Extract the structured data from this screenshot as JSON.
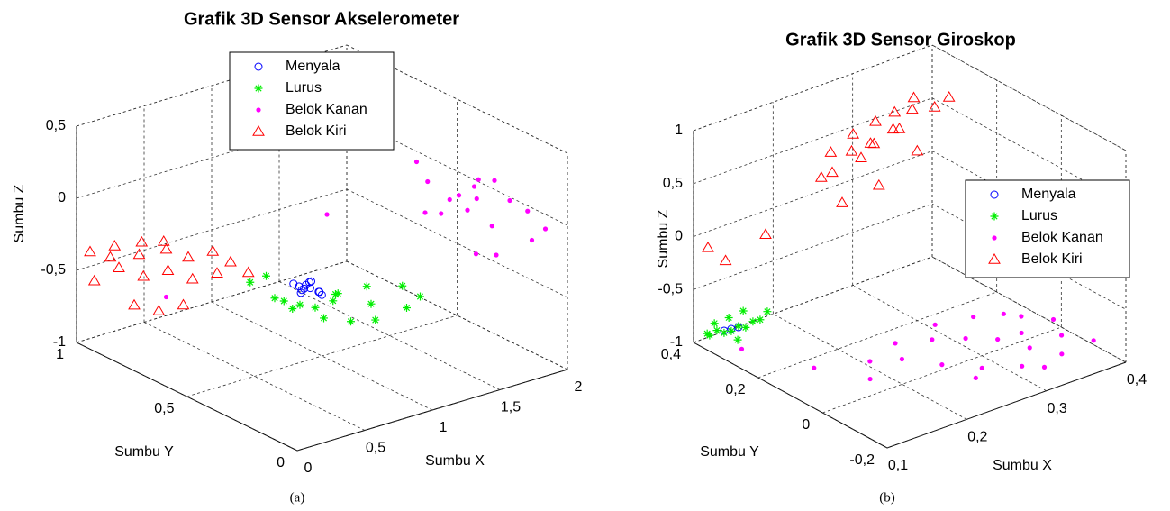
{
  "chart_data": [
    {
      "type": "scatter3d",
      "title": "Grafik 3D Sensor Akselerometer",
      "caption": "(a)",
      "xlabel": "Sumbu X",
      "ylabel": "Sumbu Y",
      "zlabel": "Sumbu Z",
      "xlim": [
        0,
        2
      ],
      "ylim": [
        0,
        1
      ],
      "zlim": [
        -1,
        0.5
      ],
      "xticks": [
        0,
        {
          "value": 0.5,
          "label": "0,5"
        },
        1,
        {
          "value": 1.5,
          "label": "1,5"
        },
        2
      ],
      "yticks": [
        0,
        {
          "value": 0.5,
          "label": "0,5"
        },
        1
      ],
      "zticks": [
        -1,
        {
          "value": -0.5,
          "label": "-0,5"
        },
        0,
        {
          "value": 0.5,
          "label": "0,5"
        }
      ],
      "grid": true,
      "legend": "north",
      "series": [
        {
          "name": "Menyala",
          "color": "#0000ff",
          "marker": "o",
          "x": [
            0.85,
            0.88,
            0.9,
            0.92,
            0.87,
            0.95,
            0.9,
            0.83,
            0.93,
            0.89,
            0.86,
            0.91
          ],
          "y": [
            0.5,
            0.48,
            0.52,
            0.5,
            0.55,
            0.47,
            0.45,
            0.5,
            0.53,
            0.49,
            0.51,
            0.46
          ],
          "z": [
            -0.5,
            -0.48,
            -0.52,
            -0.46,
            -0.5,
            -0.54,
            -0.49,
            -0.47,
            -0.51,
            -0.45,
            -0.53,
            -0.5
          ]
        },
        {
          "name": "Lurus",
          "color": "#00ee00",
          "marker": "*",
          "x": [
            0.55,
            0.65,
            0.7,
            0.8,
            0.85,
            0.95,
            1.0,
            1.05,
            1.1,
            1.15,
            1.2,
            1.25,
            1.3,
            1.35,
            1.4,
            0.75,
            1.0,
            1.2
          ],
          "y": [
            0.55,
            0.5,
            0.45,
            0.55,
            0.4,
            0.5,
            0.45,
            0.4,
            0.5,
            0.35,
            0.4,
            0.45,
            0.3,
            0.35,
            0.3,
            0.6,
            0.6,
            0.55
          ],
          "z": [
            -0.4,
            -0.5,
            -0.55,
            -0.6,
            -0.62,
            -0.65,
            -0.58,
            -0.7,
            -0.6,
            -0.68,
            -0.62,
            -0.55,
            -0.6,
            -0.5,
            -0.55,
            -0.45,
            -0.72,
            -0.66
          ]
        },
        {
          "name": "Belok Kanan",
          "color": "#ff00ff",
          "marker": ".",
          "x": [
            1.6,
            1.7,
            1.75,
            1.8,
            1.85,
            1.9,
            1.95,
            2.0,
            1.7,
            1.8,
            1.9,
            1.65,
            1.75,
            1.85,
            1.95,
            1.8,
            1.9,
            1.2,
            0.5,
            1.7
          ],
          "y": [
            0.4,
            0.35,
            0.3,
            0.3,
            0.25,
            0.2,
            0.15,
            0.1,
            0.5,
            0.45,
            0.35,
            0.2,
            0.25,
            0.4,
            0.3,
            0.2,
            0.1,
            0.6,
            0.9,
            0.45
          ],
          "z": [
            -0.1,
            0,
            -0.05,
            0.1,
            -0.15,
            0.05,
            0,
            -0.1,
            0.15,
            -0.2,
            -0.05,
            -0.25,
            0.2,
            -0.05,
            0.1,
            -0.3,
            -0.15,
            -0.15,
            -0.75,
            0.05
          ]
        },
        {
          "name": "Belok Kiri",
          "color": "#ff0000",
          "marker": "^",
          "x": [
            0.05,
            0.1,
            0.15,
            0.2,
            0.25,
            0.3,
            0.35,
            0.4,
            0.45,
            0.5,
            0.55,
            0.6,
            0.65,
            0.7,
            0.2,
            0.3,
            0.4,
            0.1,
            0.5,
            0.25
          ],
          "y": [
            0.95,
            1,
            0.9,
            0.95,
            0.85,
            0.9,
            0.8,
            0.85,
            0.75,
            0.8,
            0.7,
            0.75,
            0.7,
            0.65,
            0.75,
            0.7,
            0.95,
            0.8,
            0.9,
            1
          ],
          "z": [
            -0.55,
            -0.4,
            -0.45,
            -0.35,
            -0.5,
            -0.4,
            -0.45,
            -0.3,
            -0.5,
            -0.4,
            -0.45,
            -0.35,
            -0.4,
            -0.45,
            -0.65,
            -0.6,
            -0.38,
            -0.62,
            -0.42,
            -0.48
          ]
        }
      ]
    },
    {
      "type": "scatter3d",
      "title": "Grafik 3D Sensor Giroskop",
      "caption": "(b)",
      "xlabel": "Sumbu X",
      "ylabel": "Sumbu Y",
      "zlabel": "Sumbu Z",
      "xlim": [
        0.1,
        0.4
      ],
      "ylim": [
        -0.2,
        0.4
      ],
      "zlim": [
        -1,
        1
      ],
      "xticks": [
        {
          "value": 0.1,
          "label": "0,1"
        },
        {
          "value": 0.2,
          "label": "0,2"
        },
        {
          "value": 0.3,
          "label": "0,3"
        },
        {
          "value": 0.4,
          "label": "0,4"
        }
      ],
      "yticks": [
        {
          "value": -0.2,
          "label": "-0,2"
        },
        0,
        {
          "value": 0.2,
          "label": "0,2"
        },
        {
          "value": 0.4,
          "label": "0,4"
        }
      ],
      "zticks": [
        -1,
        {
          "value": -0.5,
          "label": "-0,5"
        },
        0,
        {
          "value": 0.5,
          "label": "0,5"
        },
        1
      ],
      "grid": true,
      "legend": "east",
      "series": [
        {
          "name": "Menyala",
          "color": "#0000ff",
          "marker": "o",
          "x": [
            0.11,
            0.115,
            0.12
          ],
          "y": [
            0.33,
            0.32,
            0.31
          ],
          "z": [
            -0.8,
            -0.78,
            -0.76
          ]
        },
        {
          "name": "Lurus",
          "color": "#00ee00",
          "marker": "*",
          "x": [
            0.1,
            0.105,
            0.11,
            0.11,
            0.115,
            0.12,
            0.12,
            0.125,
            0.13,
            0.13,
            0.135,
            0.14,
            0.105,
            0.115
          ],
          "y": [
            0.35,
            0.34,
            0.33,
            0.36,
            0.32,
            0.31,
            0.34,
            0.3,
            0.29,
            0.32,
            0.28,
            0.27,
            0.37,
            0.3
          ],
          "z": [
            -0.85,
            -0.8,
            -0.82,
            -0.78,
            -0.8,
            -0.75,
            -0.72,
            -0.76,
            -0.7,
            -0.65,
            -0.68,
            -0.6,
            -0.88,
            -0.85
          ]
        },
        {
          "name": "Belok Kanan",
          "color": "#ff00ff",
          "marker": ".",
          "x": [
            0.2,
            0.22,
            0.24,
            0.25,
            0.27,
            0.28,
            0.3,
            0.31,
            0.32,
            0.33,
            0.34,
            0.35,
            0.36,
            0.37,
            0.38,
            0.39,
            0.4,
            0.26,
            0.29,
            0.33,
            0.36,
            0.15,
            0.12,
            0.18
          ],
          "y": [
            0.1,
            0.05,
            0.12,
            0,
            0.08,
            -0.05,
            0.05,
            -0.1,
            0,
            0.1,
            -0.05,
            0,
            -0.1,
            0.05,
            -0.05,
            0,
            -0.1,
            -0.08,
            0.12,
            -0.12,
            0.08,
            0.15,
            0.3,
            0.05
          ],
          "z": [
            -0.95,
            -0.9,
            -0.92,
            -0.95,
            -0.9,
            -0.98,
            -0.92,
            -0.96,
            -0.9,
            -0.88,
            -0.95,
            -0.92,
            -0.98,
            -0.9,
            -0.94,
            -0.9,
            -0.96,
            -0.97,
            -0.88,
            -0.99,
            -0.9,
            -0.96,
            -0.95,
            -0.98
          ]
        },
        {
          "name": "Belok Kiri",
          "color": "#ff0000",
          "marker": "^",
          "x": [
            0.22,
            0.24,
            0.25,
            0.26,
            0.27,
            0.28,
            0.29,
            0.3,
            0.31,
            0.32,
            0.33,
            0.34,
            0.25,
            0.27,
            0.29,
            0.31,
            0.23,
            0.26,
            0.3,
            0.12,
            0.11,
            0.15
          ],
          "y": [
            0.3,
            0.32,
            0.28,
            0.3,
            0.26,
            0.28,
            0.25,
            0.27,
            0.24,
            0.26,
            0.22,
            0.2,
            0.34,
            0.3,
            0.32,
            0.28,
            0.26,
            0.22,
            0.2,
            0.35,
            0.38,
            0.3
          ],
          "z": [
            0.4,
            0.55,
            0.6,
            0.7,
            0.65,
            0.8,
            0.75,
            0.85,
            0.9,
            0.95,
            0.9,
            1.0,
            0.3,
            0.45,
            0.5,
            0.65,
            0.2,
            0.35,
            0.6,
            -0.2,
            -0.1,
            0.05
          ]
        }
      ]
    }
  ]
}
